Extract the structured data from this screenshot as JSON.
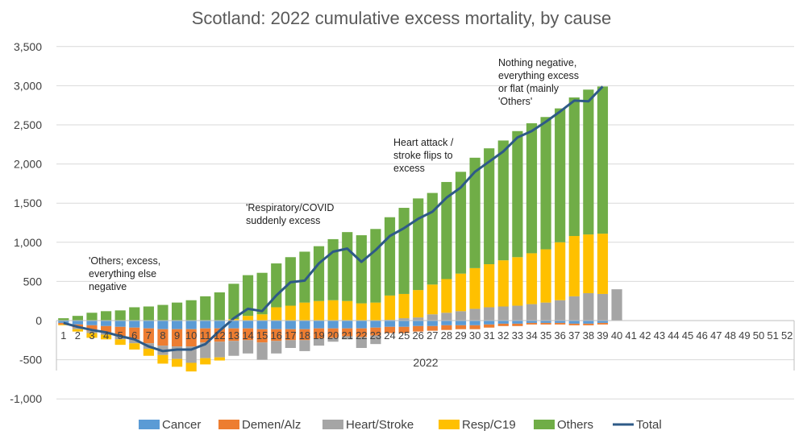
{
  "chart_data": {
    "type": "bar",
    "stacked": true,
    "title": "Scotland: 2022 cumulative excess mortality, by cause",
    "xlabel": "2022",
    "ylabel": "",
    "ylim": [
      -1000,
      3500
    ],
    "yticks": [
      -1000,
      -500,
      0,
      500,
      1000,
      1500,
      2000,
      2500,
      3000,
      3500
    ],
    "ytick_labels": [
      "-1,000",
      "-500",
      "0",
      "500",
      "1,000",
      "1,500",
      "2,000",
      "2,500",
      "3,000",
      "3,500"
    ],
    "categories": [
      "1",
      "2",
      "3",
      "4",
      "5",
      "6",
      "7",
      "8",
      "9",
      "10",
      "11",
      "12",
      "13",
      "14",
      "15",
      "16",
      "17",
      "18",
      "19",
      "20",
      "21",
      "22",
      "23",
      "24",
      "25",
      "26",
      "27",
      "28",
      "29",
      "30",
      "31",
      "32",
      "33",
      "34",
      "35",
      "36",
      "37",
      "38",
      "39",
      "40",
      "41",
      "42",
      "43",
      "44",
      "45",
      "46",
      "47",
      "48",
      "49",
      "50",
      "51",
      "52"
    ],
    "legend_position": "bottom",
    "grid": true,
    "series": [
      {
        "name": "Cancer",
        "kind": "bar",
        "color": "#5B9BD5",
        "values": [
          -30,
          -50,
          -60,
          -70,
          -80,
          -90,
          -100,
          -110,
          -110,
          -110,
          -100,
          -100,
          -100,
          -100,
          -110,
          -110,
          -110,
          -110,
          -100,
          -100,
          -100,
          -100,
          -90,
          -80,
          -80,
          -70,
          -70,
          -60,
          -60,
          -60,
          -50,
          -40,
          -40,
          -30,
          -30,
          -30,
          -40,
          -40,
          -30,
          null,
          null,
          null,
          null,
          null,
          null,
          null,
          null,
          null,
          null,
          null,
          null,
          null
        ]
      },
      {
        "name": "Demen/Alz",
        "kind": "bar",
        "color": "#ED7D31",
        "values": [
          -20,
          -40,
          -70,
          -80,
          -120,
          -150,
          -190,
          -210,
          -220,
          -220,
          -180,
          -170,
          -160,
          -150,
          -170,
          -150,
          -140,
          -140,
          -130,
          -120,
          -100,
          -110,
          -100,
          -80,
          -80,
          -70,
          -60,
          -60,
          -50,
          -50,
          -40,
          -30,
          -30,
          -20,
          -20,
          -20,
          -20,
          -20,
          -20,
          null,
          null,
          null,
          null,
          null,
          null,
          null,
          null,
          null,
          null,
          null,
          null,
          null
        ]
      },
      {
        "name": "Heart/Stroke",
        "kind": "bar",
        "color": "#A5A5A5",
        "values": [
          0,
          -20,
          -30,
          -30,
          -40,
          -50,
          -70,
          -120,
          -160,
          -210,
          -200,
          -200,
          -190,
          -170,
          -220,
          -160,
          -100,
          -140,
          -90,
          -50,
          -40,
          -140,
          -110,
          10,
          30,
          40,
          80,
          100,
          120,
          150,
          170,
          180,
          190,
          210,
          230,
          260,
          310,
          350,
          340,
          400,
          null,
          null,
          null,
          null,
          null,
          null,
          null,
          null,
          null,
          null,
          null,
          null
        ]
      },
      {
        "name": "Resp/C19",
        "kind": "bar",
        "color": "#FFC000",
        "values": [
          -10,
          -30,
          -60,
          -60,
          -70,
          -80,
          -90,
          -110,
          -100,
          -110,
          -80,
          -40,
          20,
          60,
          80,
          170,
          190,
          230,
          250,
          260,
          250,
          220,
          230,
          310,
          310,
          350,
          380,
          430,
          480,
          520,
          550,
          590,
          620,
          650,
          680,
          740,
          770,
          750,
          770,
          null,
          null,
          null,
          null,
          null,
          null,
          null,
          null,
          null,
          null,
          null,
          null,
          null
        ]
      },
      {
        "name": "Others",
        "kind": "bar",
        "color": "#70AD47",
        "values": [
          30,
          60,
          100,
          120,
          130,
          170,
          180,
          200,
          230,
          260,
          310,
          360,
          450,
          520,
          530,
          560,
          620,
          650,
          700,
          780,
          880,
          870,
          940,
          1000,
          1100,
          1170,
          1170,
          1240,
          1300,
          1410,
          1480,
          1530,
          1610,
          1660,
          1690,
          1710,
          1770,
          1850,
          1880,
          null,
          null,
          null,
          null,
          null,
          null,
          null,
          null,
          null,
          null,
          null,
          null,
          null
        ]
      },
      {
        "name": "Total",
        "kind": "line",
        "color": "#2E5A87",
        "values": [
          -30,
          -80,
          -120,
          -150,
          -200,
          -240,
          -330,
          -390,
          -370,
          -370,
          -300,
          -130,
          30,
          150,
          120,
          320,
          490,
          510,
          730,
          880,
          920,
          750,
          900,
          1080,
          1180,
          1300,
          1390,
          1570,
          1700,
          1900,
          2030,
          2160,
          2340,
          2420,
          2540,
          2670,
          2810,
          2800,
          2990,
          null,
          null,
          null,
          null,
          null,
          null,
          null,
          null,
          null,
          null,
          null,
          null,
          null
        ]
      }
    ],
    "annotations": [
      {
        "lines": [
          "'Others; excess,",
          "everything else",
          "negative"
        ]
      },
      {
        "lines": [
          "'Respiratory/COVID",
          "suddenly excess"
        ]
      },
      {
        "lines": [
          "Heart attack /",
          "stroke flips to",
          "excess"
        ]
      },
      {
        "lines": [
          "Nothing negative,",
          "everything excess",
          "or flat (mainly",
          "'Others'"
        ]
      }
    ]
  }
}
